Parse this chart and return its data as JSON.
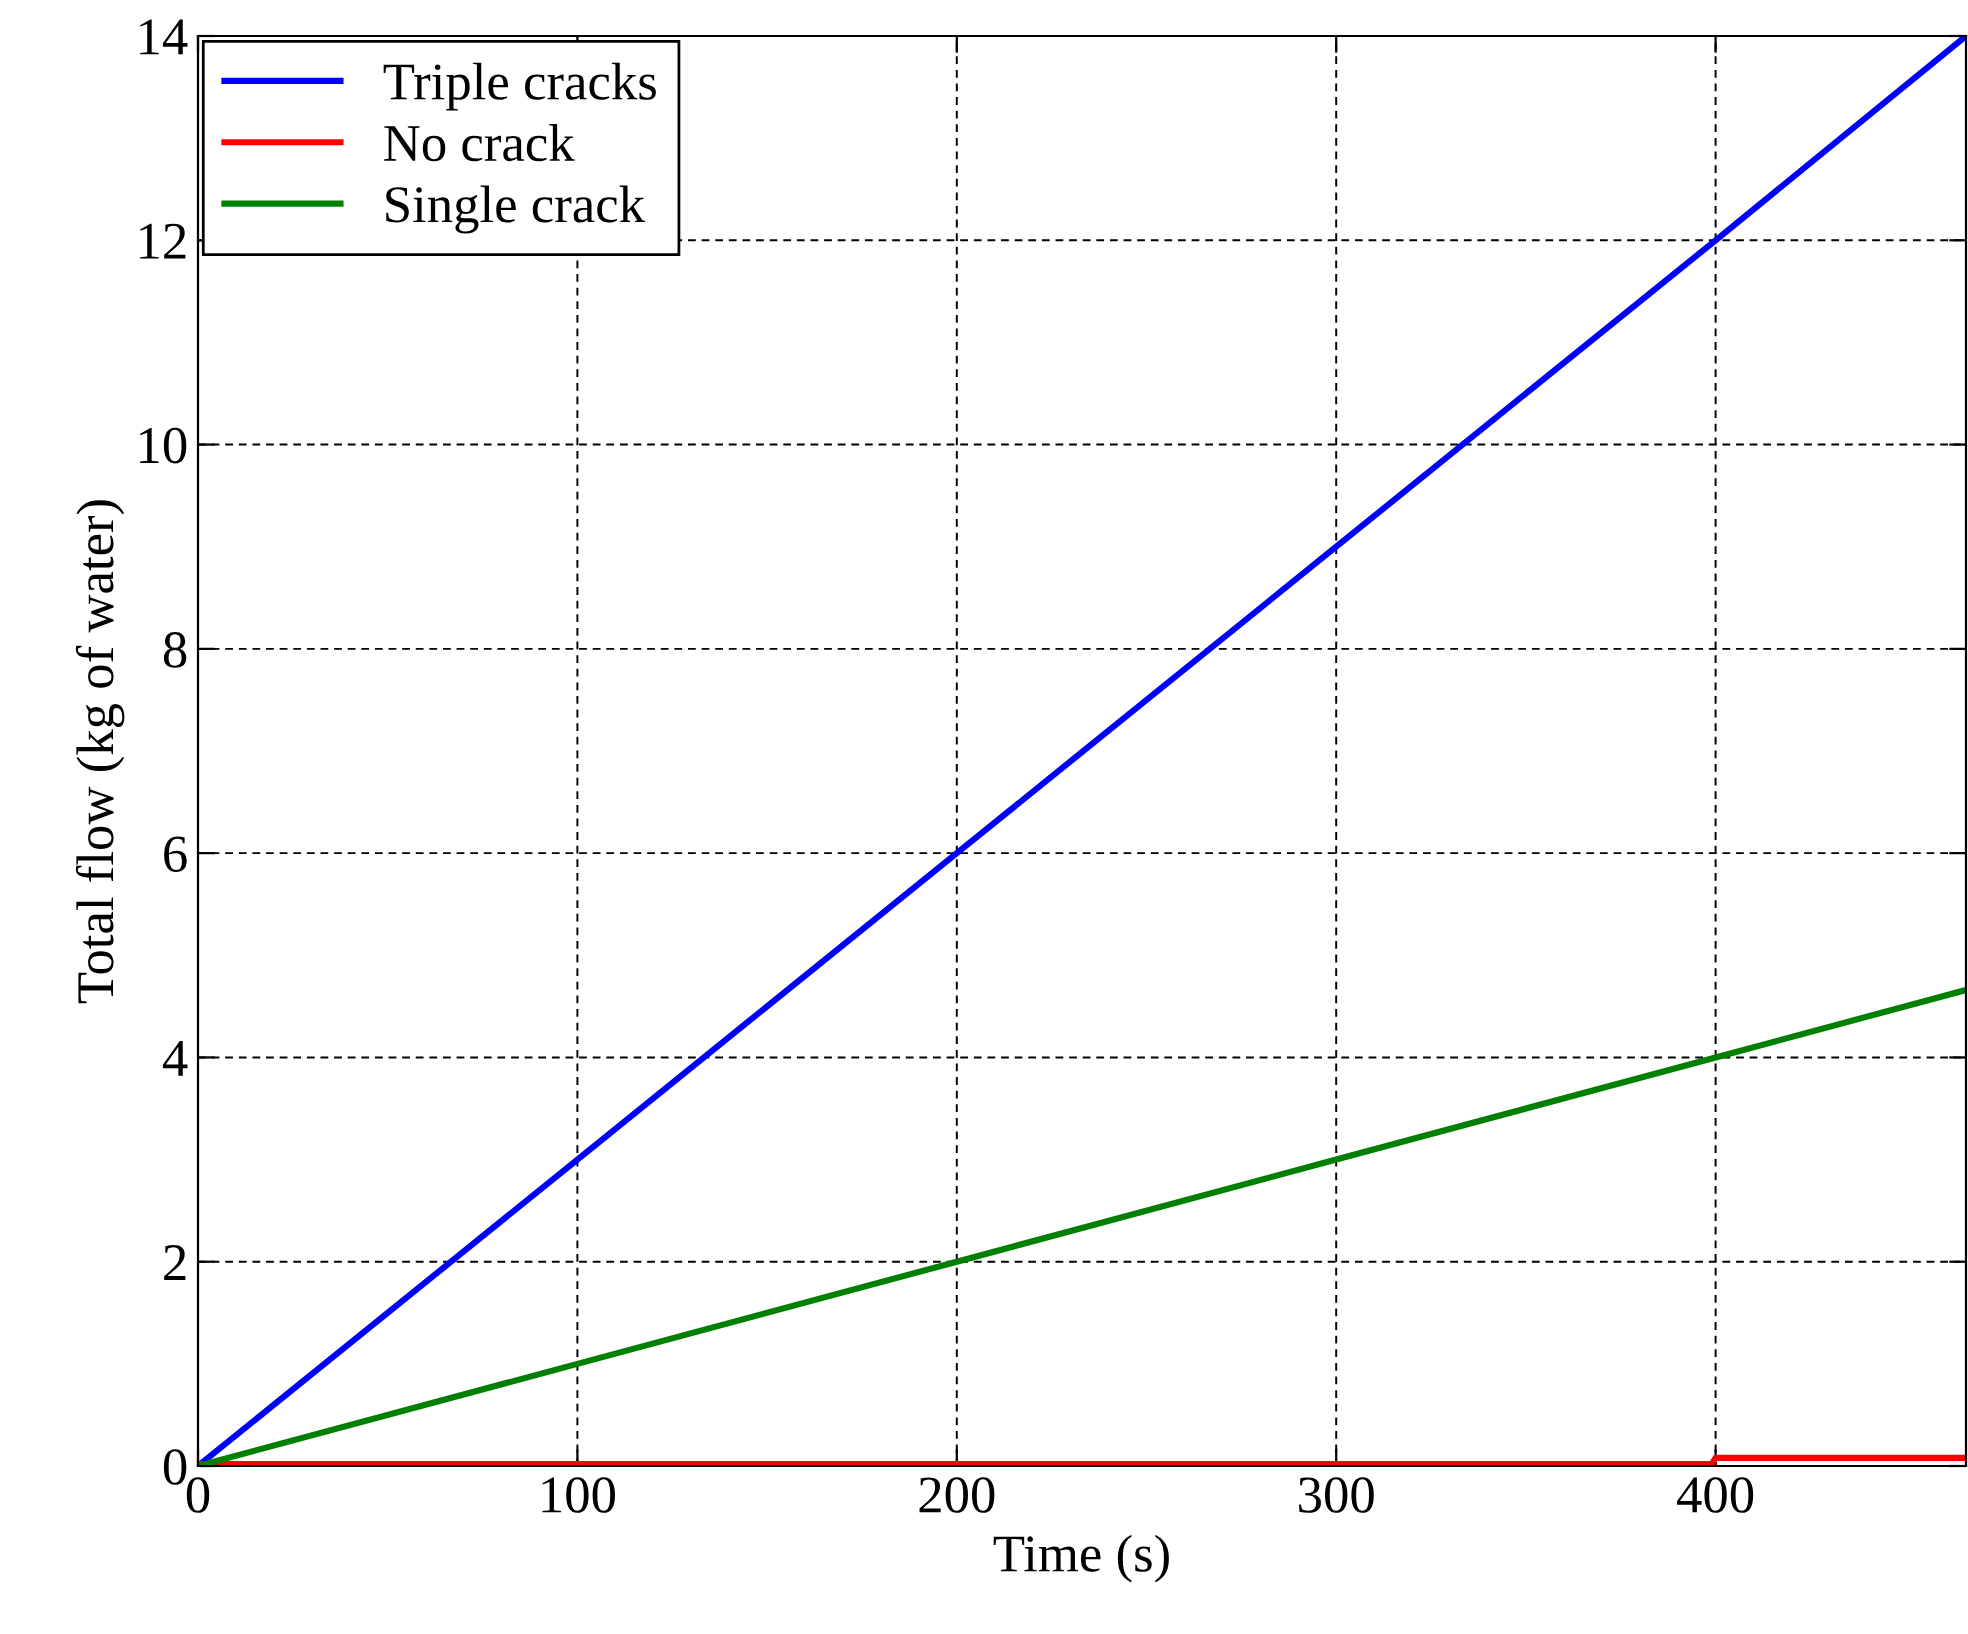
{
  "chart_data": {
    "type": "line",
    "xlabel": "Time (s)",
    "ylabel": "Total flow (kg of water)",
    "xlim": [
      0,
      466
    ],
    "ylim": [
      0,
      14
    ],
    "xticks": [
      0,
      100,
      200,
      300,
      400
    ],
    "yticks": [
      0,
      2,
      4,
      6,
      8,
      10,
      12,
      14
    ],
    "grid": true,
    "legend": "top left",
    "line_style": "solid",
    "marker": "none",
    "series": [
      {
        "name": "Triple cracks",
        "color": "#0000ff",
        "x": [
          0,
          100,
          200,
          300,
          400,
          466
        ],
        "values": [
          0,
          3,
          6,
          9,
          12,
          14
        ]
      },
      {
        "name": "No crack",
        "color": "#ff0000",
        "x": [
          0,
          399,
          400,
          466
        ],
        "values": [
          0.02,
          0.02,
          0.08,
          0.08
        ]
      },
      {
        "name": "Single crack",
        "color": "#008000",
        "x": [
          0,
          100,
          200,
          300,
          400,
          466
        ],
        "values": [
          0,
          1,
          2,
          3,
          4,
          4.66
        ]
      }
    ]
  }
}
